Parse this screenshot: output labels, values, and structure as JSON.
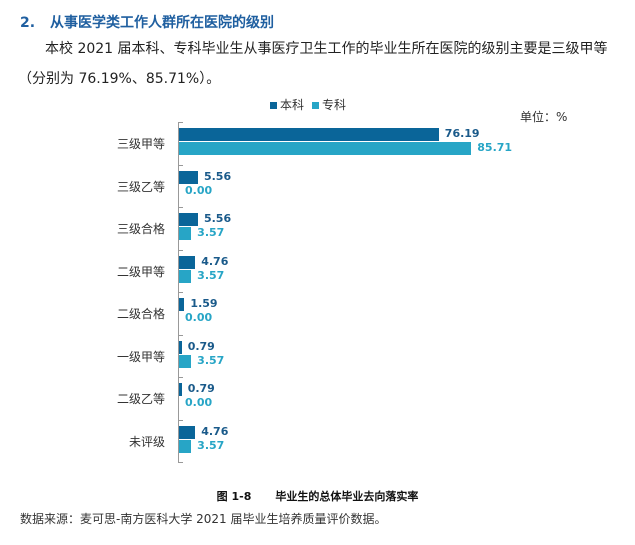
{
  "heading": {
    "number": "2.",
    "title": "从事医学类工作人群所在医院的级别"
  },
  "paragraph": {
    "line1": "本校 2021 届本科、专科毕业生从事医疗卫生工作的毕业生所在医院的级别主要是三级甲等",
    "line2": "（分别为 76.19%、85.71%）。"
  },
  "legend": {
    "series1": "本科",
    "series2": "专科"
  },
  "unit": "单位：%",
  "colors": {
    "series1": "#0a6599",
    "series2": "#27a5c6"
  },
  "caption": {
    "figure": "图 1-8",
    "title": "毕业生的总体毕业去向落实率"
  },
  "source": "数据来源：麦可思-南方医科大学 2021 届毕业生培养质量评价数据。",
  "chart_data": {
    "type": "bar",
    "orientation": "horizontal",
    "title": "毕业生的总体毕业去向落实率",
    "xlabel": "",
    "ylabel": "",
    "unit": "%",
    "categories": [
      "三级甲等",
      "三级乙等",
      "三级合格",
      "二级甲等",
      "二级合格",
      "一级甲等",
      "二级乙等",
      "未评级"
    ],
    "series": [
      {
        "name": "本科",
        "color": "#0a6599",
        "values": [
          76.19,
          5.56,
          5.56,
          4.76,
          1.59,
          0.79,
          0.79,
          4.76
        ]
      },
      {
        "name": "专科",
        "color": "#27a5c6",
        "values": [
          85.71,
          0.0,
          3.57,
          3.57,
          0.0,
          3.57,
          0.0,
          3.57
        ]
      }
    ],
    "legend_position": "top",
    "grid": false,
    "xlim": [
      0,
      100
    ]
  }
}
